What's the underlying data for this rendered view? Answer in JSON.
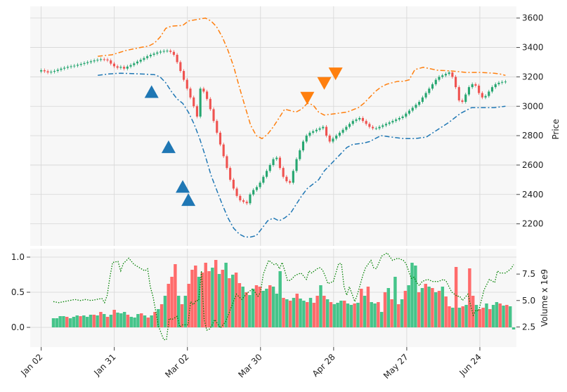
{
  "chart_data": [
    {
      "type": "candlestick",
      "panel": "price",
      "ylabel": "Price",
      "y_axis_side": "right",
      "ylim": [
        2050,
        3680
      ],
      "yticks": [
        2200,
        2400,
        2600,
        2800,
        3000,
        3200,
        3400,
        3600
      ],
      "xlim": [
        -3,
        130
      ],
      "x_tick_positions": [
        0,
        20,
        40,
        60,
        80,
        100,
        120
      ],
      "x_tick_labels": [
        "Jan 02",
        "Jan 31",
        "Mar 02",
        "Mar 30",
        "Apr 28",
        "May 27",
        "Jun 24"
      ],
      "grid": true,
      "colors": {
        "up": "#26a670",
        "down": "#ef5350",
        "upper_band": "#ff7f0e",
        "lower_band": "#1f77b4",
        "volume_avg": "#008000",
        "buy_marker": "#1f77b4",
        "sell_marker": "#ff7f0e",
        "panel_bg": "#f7f7f7"
      },
      "close": [
        3245,
        3238,
        3230,
        3235,
        3240,
        3248,
        3256,
        3262,
        3268,
        3272,
        3276,
        3282,
        3288,
        3294,
        3300,
        3306,
        3312,
        3316,
        3320,
        3318,
        3312,
        3290,
        3272,
        3262,
        3268,
        3256,
        3270,
        3280,
        3292,
        3304,
        3316,
        3328,
        3340,
        3350,
        3358,
        3366,
        3372,
        3376,
        3378,
        3370,
        3350,
        3300,
        3240,
        3180,
        3120,
        3060,
        3000,
        2930,
        3120,
        3100,
        3050,
        2980,
        2900,
        2820,
        2740,
        2660,
        2580,
        2500,
        2440,
        2390,
        2360,
        2350,
        2340,
        2400,
        2430,
        2450,
        2480,
        2520,
        2560,
        2600,
        2640,
        2650,
        2580,
        2520,
        2490,
        2480,
        2560,
        2640,
        2700,
        2760,
        2800,
        2820,
        2830,
        2840,
        2850,
        2860,
        2800,
        2760,
        2780,
        2800,
        2820,
        2840,
        2860,
        2880,
        2900,
        2910,
        2920,
        2900,
        2880,
        2860,
        2850,
        2850,
        2860,
        2870,
        2880,
        2890,
        2900,
        2910,
        2920,
        2930,
        2950,
        2970,
        2990,
        3010,
        3030,
        3060,
        3090,
        3120,
        3150,
        3180,
        3200,
        3210,
        3220,
        3230,
        3200,
        3130,
        3040,
        3030,
        3080,
        3130,
        3150,
        3140,
        3090,
        3060,
        3070,
        3100,
        3130,
        3150,
        3160,
        3165,
        3168
      ],
      "upper_band": [
        [
          20,
          3340
        ],
        [
          25,
          3350
        ],
        [
          30,
          3380
        ],
        [
          35,
          3400
        ],
        [
          38,
          3410
        ],
        [
          40,
          3430
        ],
        [
          42,
          3470
        ],
        [
          44,
          3530
        ],
        [
          46,
          3545
        ],
        [
          50,
          3550
        ],
        [
          52,
          3580
        ],
        [
          55,
          3590
        ],
        [
          58,
          3600
        ],
        [
          60,
          3580
        ],
        [
          62,
          3540
        ],
        [
          64,
          3470
        ],
        [
          66,
          3380
        ],
        [
          68,
          3270
        ],
        [
          70,
          3130
        ],
        [
          72,
          3000
        ],
        [
          74,
          2870
        ],
        [
          76,
          2800
        ],
        [
          78,
          2780
        ],
        [
          80,
          2810
        ],
        [
          82,
          2860
        ],
        [
          84,
          2920
        ],
        [
          86,
          2980
        ],
        [
          88,
          2970
        ],
        [
          90,
          2960
        ],
        [
          92,
          2980
        ],
        [
          94,
          3020
        ],
        [
          96,
          3010
        ],
        [
          98,
          2960
        ],
        [
          100,
          2940
        ],
        [
          104,
          2950
        ],
        [
          108,
          2960
        ],
        [
          112,
          2990
        ],
        [
          114,
          3020
        ],
        [
          116,
          3060
        ],
        [
          118,
          3100
        ],
        [
          120,
          3130
        ],
        [
          122,
          3150
        ],
        [
          124,
          3160
        ],
        [
          126,
          3170
        ],
        [
          128,
          3170
        ],
        [
          130,
          3180
        ],
        [
          132,
          3250
        ],
        [
          135,
          3265
        ],
        [
          140,
          3245
        ],
        [
          145,
          3240
        ],
        [
          150,
          3230
        ],
        [
          155,
          3230
        ],
        [
          160,
          3225
        ],
        [
          162,
          3220
        ],
        [
          164,
          3210
        ]
      ],
      "lower_band": [
        [
          20,
          3210
        ],
        [
          24,
          3220
        ],
        [
          28,
          3225
        ],
        [
          35,
          3220
        ],
        [
          40,
          3215
        ],
        [
          42,
          3200
        ],
        [
          44,
          3160
        ],
        [
          46,
          3100
        ],
        [
          48,
          3050
        ],
        [
          50,
          3020
        ],
        [
          52,
          2960
        ],
        [
          54,
          2880
        ],
        [
          56,
          2780
        ],
        [
          58,
          2660
        ],
        [
          60,
          2530
        ],
        [
          62,
          2430
        ],
        [
          64,
          2330
        ],
        [
          66,
          2240
        ],
        [
          68,
          2170
        ],
        [
          70,
          2130
        ],
        [
          72,
          2110
        ],
        [
          74,
          2110
        ],
        [
          76,
          2120
        ],
        [
          78,
          2170
        ],
        [
          80,
          2220
        ],
        [
          82,
          2240
        ],
        [
          84,
          2220
        ],
        [
          86,
          2240
        ],
        [
          88,
          2270
        ],
        [
          90,
          2330
        ],
        [
          92,
          2390
        ],
        [
          94,
          2440
        ],
        [
          96,
          2470
        ],
        [
          98,
          2500
        ],
        [
          100,
          2560
        ],
        [
          102,
          2600
        ],
        [
          104,
          2640
        ],
        [
          106,
          2680
        ],
        [
          108,
          2720
        ],
        [
          110,
          2740
        ],
        [
          114,
          2750
        ],
        [
          116,
          2760
        ],
        [
          118,
          2780
        ],
        [
          120,
          2800
        ],
        [
          124,
          2790
        ],
        [
          128,
          2780
        ],
        [
          132,
          2780
        ],
        [
          136,
          2790
        ],
        [
          140,
          2840
        ],
        [
          144,
          2890
        ],
        [
          148,
          2950
        ],
        [
          152,
          2990
        ],
        [
          156,
          2990
        ],
        [
          160,
          2990
        ],
        [
          164,
          3000
        ]
      ],
      "buy_markers": [
        [
          39,
          3095
        ],
        [
          45,
          2720
        ],
        [
          50,
          2450
        ],
        [
          52,
          2360
        ]
      ],
      "sell_markers": [
        [
          94,
          3060
        ],
        [
          100,
          3160
        ],
        [
          104,
          3225
        ]
      ]
    },
    {
      "type": "bar",
      "panel": "volume",
      "ylabel": "Volume x 1e9",
      "left_yticks": [
        0.0,
        0.5,
        1.0
      ],
      "left_ylim": [
        -0.28,
        1.12
      ],
      "right_yticks": [
        2.5,
        5.0,
        7.5
      ],
      "right_ylim": [
        0.6,
        9.9
      ],
      "values": [
        0.13,
        0.13,
        0.16,
        0.16,
        0.15,
        0.13,
        0.15,
        0.17,
        0.16,
        0.17,
        0.15,
        0.18,
        0.18,
        0.17,
        0.22,
        0.19,
        0.15,
        0.18,
        0.25,
        0.21,
        0.2,
        0.22,
        0.18,
        0.15,
        0.14,
        0.19,
        0.2,
        0.17,
        0.14,
        0.17,
        0.22,
        0.26,
        0.33,
        0.45,
        0.62,
        0.72,
        0.9,
        0.45,
        0.33,
        0.45,
        0.62,
        0.82,
        0.88,
        0.72,
        0.78,
        0.92,
        0.8,
        0.85,
        0.96,
        0.76,
        0.82,
        0.92,
        0.7,
        0.75,
        0.78,
        0.63,
        0.58,
        0.5,
        0.46,
        0.55,
        0.6,
        0.58,
        0.52,
        0.55,
        0.6,
        0.58,
        0.48,
        0.8,
        0.42,
        0.4,
        0.38,
        0.42,
        0.48,
        0.41,
        0.38,
        0.36,
        0.42,
        0.35,
        0.45,
        0.6,
        0.45,
        0.4,
        0.36,
        0.33,
        0.35,
        0.38,
        0.38,
        0.34,
        0.32,
        0.34,
        0.35,
        0.55,
        0.45,
        0.58,
        0.36,
        0.34,
        0.36,
        0.22,
        0.5,
        0.56,
        0.4,
        0.72,
        0.33,
        0.4,
        0.52,
        0.6,
        0.92,
        0.88,
        0.5,
        0.56,
        0.62,
        0.58,
        0.56,
        0.5,
        0.52,
        0.58,
        0.44,
        0.3,
        0.28,
        0.86,
        0.28,
        0.3,
        0.32,
        0.84,
        0.45,
        0.32,
        0.26,
        0.28,
        0.34,
        0.26,
        0.32,
        0.36,
        0.34,
        0.31,
        0.32,
        0.3,
        -0.03
      ],
      "up": [
        true,
        true,
        true,
        true,
        false,
        true,
        true,
        true,
        false,
        true,
        true,
        true,
        false,
        true,
        false,
        true,
        false,
        true,
        false,
        true,
        true,
        true,
        false,
        true,
        true,
        true,
        false,
        true,
        false,
        true,
        false,
        true,
        false,
        true,
        false,
        false,
        false,
        true,
        false,
        true,
        false,
        false,
        false,
        true,
        false,
        false,
        false,
        true,
        false,
        true,
        false,
        true,
        false,
        true,
        false,
        false,
        true,
        false,
        true,
        true,
        false,
        false,
        true,
        true,
        false,
        true,
        true,
        true,
        false,
        true,
        false,
        true,
        false,
        true,
        true,
        false,
        true,
        false,
        false,
        true,
        false,
        true,
        false,
        true,
        true,
        true,
        false,
        true,
        true,
        false,
        true,
        false,
        true,
        false,
        true,
        true,
        false,
        true,
        false,
        true,
        false,
        true,
        false,
        true,
        false,
        true,
        true,
        true,
        false,
        true,
        false,
        true,
        false,
        true,
        false,
        true,
        false,
        false,
        true,
        false,
        true,
        false,
        true,
        false,
        false,
        true,
        false,
        false,
        true,
        false,
        true,
        true,
        false,
        true,
        false,
        true,
        true
      ],
      "volume_avg": [
        [
          0,
          4.9
        ],
        [
          2,
          4.8
        ],
        [
          4,
          4.9
        ],
        [
          6,
          5.0
        ],
        [
          8,
          5.1
        ],
        [
          10,
          5.0
        ],
        [
          12,
          5.1
        ],
        [
          14,
          5.0
        ],
        [
          16,
          5.1
        ],
        [
          18,
          5.2
        ],
        [
          19,
          4.8
        ],
        [
          20,
          5.5
        ],
        [
          21,
          7.2
        ],
        [
          22,
          8.6
        ],
        [
          24,
          8.7
        ],
        [
          25,
          7.8
        ],
        [
          26,
          8.5
        ],
        [
          28,
          9.0
        ],
        [
          30,
          8.4
        ],
        [
          32,
          8.1
        ],
        [
          34,
          7.8
        ],
        [
          35,
          8.0
        ],
        [
          36,
          6.3
        ],
        [
          37,
          5.4
        ],
        [
          38,
          4.0
        ],
        [
          39,
          2.6
        ],
        [
          41,
          1.3
        ],
        [
          42,
          1.3
        ],
        [
          43,
          3.3
        ],
        [
          44,
          3.2
        ],
        [
          46,
          3.5
        ],
        [
          47,
          2.5
        ],
        [
          48,
          2.7
        ],
        [
          50,
          2.7
        ],
        [
          51,
          4.9
        ],
        [
          52,
          4.6
        ],
        [
          53,
          5.0
        ],
        [
          54,
          5.0
        ],
        [
          55,
          7.8
        ],
        [
          56,
          3.2
        ],
        [
          57,
          2.2
        ],
        [
          58,
          2.3
        ],
        [
          59,
          2.7
        ],
        [
          60,
          3.2
        ],
        [
          62,
          2.4
        ],
        [
          64,
          3.0
        ],
        [
          66,
          4.3
        ],
        [
          68,
          5.6
        ],
        [
          70,
          5.1
        ],
        [
          72,
          5.7
        ],
        [
          74,
          6.1
        ],
        [
          76,
          5.4
        ],
        [
          77,
          5.8
        ],
        [
          78,
          7.5
        ],
        [
          80,
          8.8
        ],
        [
          82,
          8.4
        ],
        [
          83,
          8.5
        ],
        [
          84,
          8.0
        ],
        [
          85,
          8.6
        ],
        [
          86,
          7.8
        ],
        [
          87,
          6.9
        ],
        [
          88,
          6.9
        ],
        [
          90,
          7.4
        ],
        [
          92,
          7.6
        ],
        [
          94,
          7.0
        ],
        [
          95,
          7.8
        ],
        [
          96,
          7.6
        ],
        [
          98,
          8.0
        ],
        [
          99,
          8.1
        ],
        [
          100,
          7.9
        ],
        [
          101,
          7.3
        ],
        [
          102,
          6.6
        ],
        [
          104,
          6.8
        ],
        [
          106,
          8.5
        ],
        [
          107,
          8.5
        ],
        [
          108,
          6.3
        ],
        [
          109,
          5.5
        ],
        [
          110,
          6.3
        ],
        [
          112,
          4.9
        ],
        [
          113,
          5.6
        ],
        [
          115,
          7.4
        ],
        [
          116,
          8.1
        ],
        [
          118,
          8.8
        ],
        [
          119,
          8.1
        ],
        [
          120,
          8.0
        ],
        [
          122,
          9.2
        ],
        [
          124,
          9.5
        ],
        [
          126,
          8.8
        ],
        [
          128,
          9.0
        ],
        [
          130,
          8.8
        ],
        [
          131,
          8.5
        ],
        [
          133,
          7.1
        ],
        [
          134,
          7.2
        ],
        [
          135,
          6.7
        ],
        [
          136,
          6.4
        ],
        [
          137,
          6.8
        ],
        [
          139,
          7.0
        ],
        [
          141,
          6.8
        ],
        [
          143,
          6.8
        ],
        [
          145,
          7.0
        ],
        [
          146,
          6.8
        ],
        [
          148,
          5.8
        ],
        [
          150,
          5.4
        ],
        [
          151,
          5.4
        ],
        [
          152,
          5.0
        ],
        [
          154,
          5.6
        ],
        [
          156,
          3.6
        ],
        [
          157,
          4.1
        ],
        [
          158,
          4.0
        ],
        [
          160,
          6.0
        ],
        [
          162,
          7.0
        ],
        [
          164,
          6.7
        ],
        [
          165,
          7.8
        ],
        [
          166,
          7.6
        ],
        [
          168,
          7.6
        ],
        [
          170,
          8.0
        ],
        [
          171,
          8.4
        ]
      ]
    }
  ]
}
